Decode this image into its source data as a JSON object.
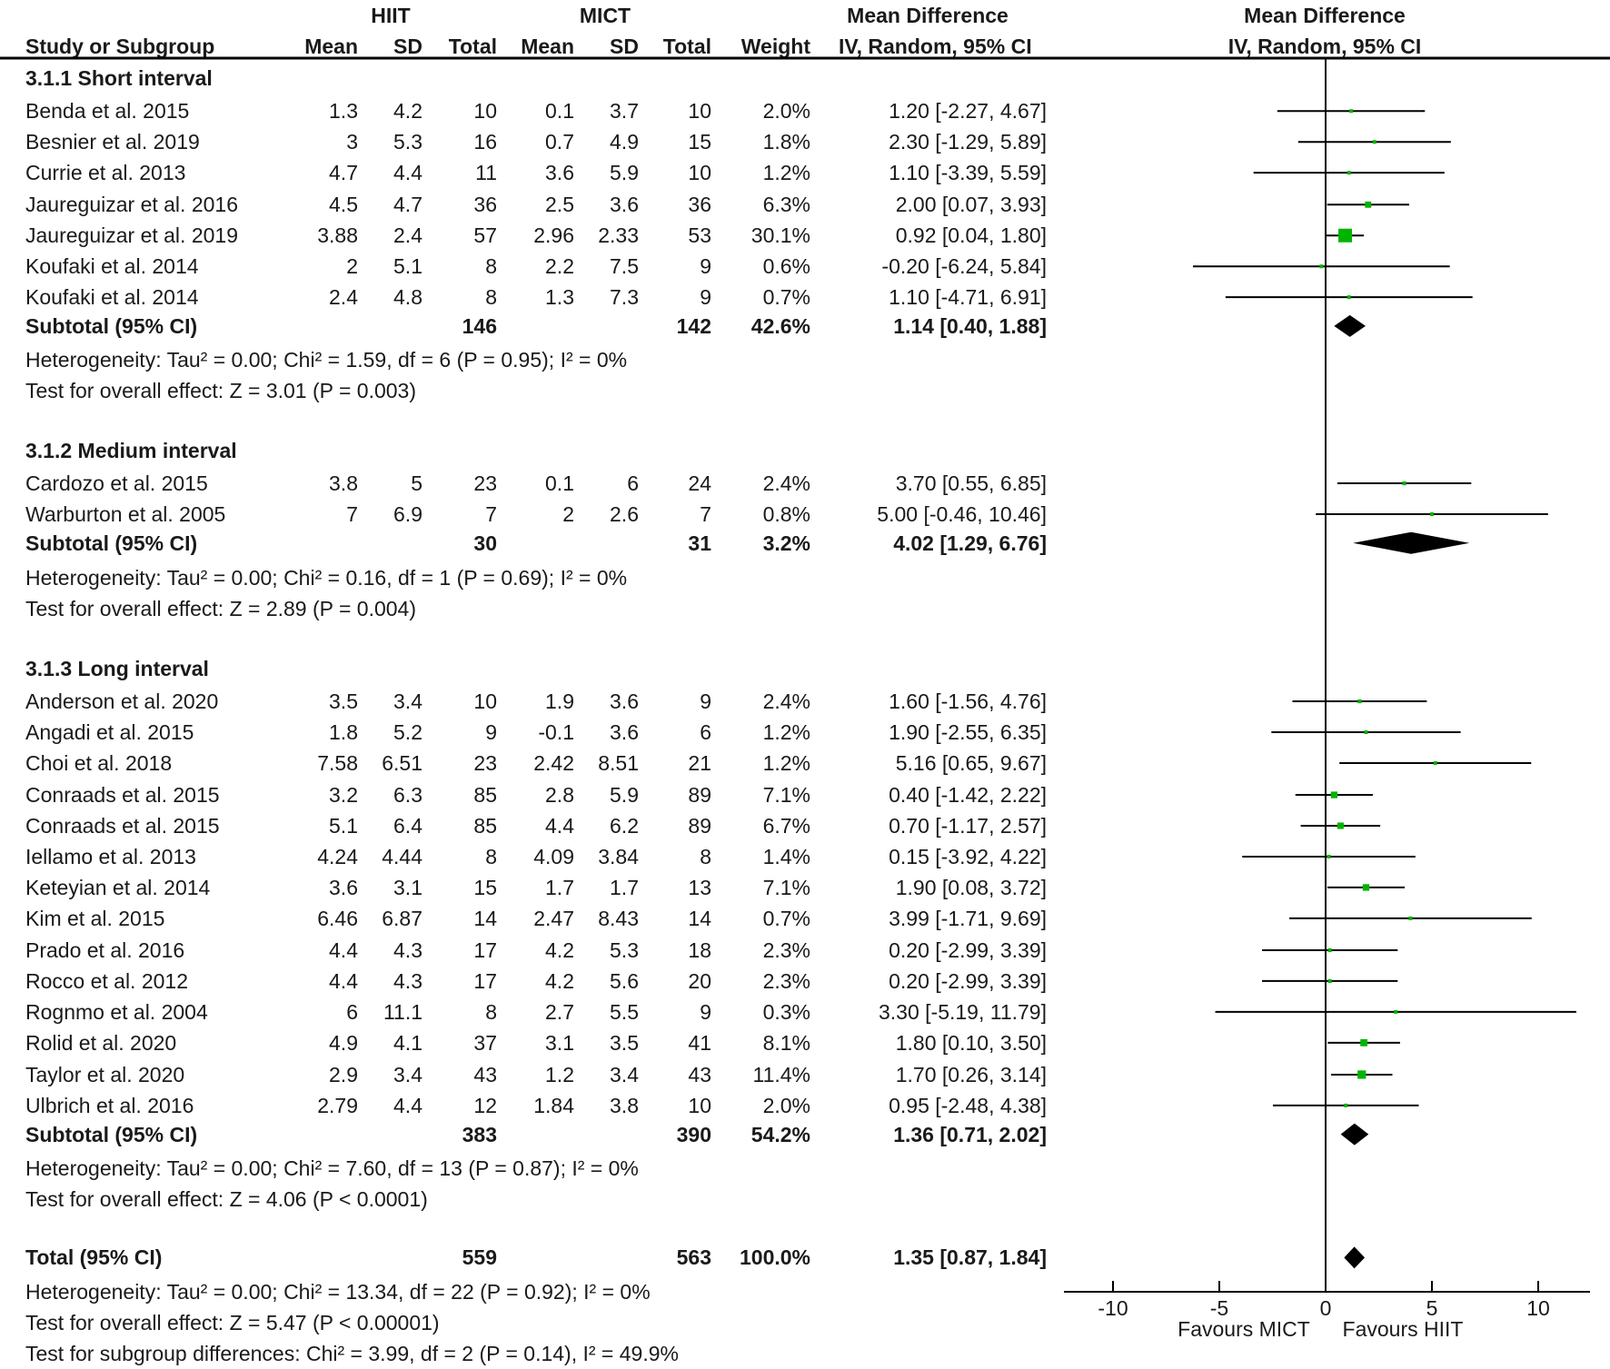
{
  "headers": {
    "group1": "HIIT",
    "group2": "MICT",
    "effect_top": "Mean Difference",
    "plot_top": "Mean Difference",
    "study": "Study or Subgroup",
    "mean1": "Mean",
    "sd1": "SD",
    "total1": "Total",
    "mean2": "Mean",
    "sd2": "SD",
    "total2": "Total",
    "weight": "Weight",
    "effect": "IV, Random, 95% CI",
    "plot": "IV, Random, 95% CI"
  },
  "chart_data": {
    "type": "forest",
    "xlim": [
      -12.5,
      12.5
    ],
    "xticks": [
      "-10",
      "-5",
      "0",
      "5",
      "10"
    ],
    "xtick_values": [
      -10,
      -5,
      0,
      5,
      10
    ],
    "favours_left": "Favours MICT",
    "favours_right": "Favours HIIT",
    "colors": {
      "square": "#00b400",
      "diamond": "#000000",
      "line": "#000000"
    },
    "rows": [
      {
        "type": "group",
        "label": "3.1.1 Short interval"
      },
      {
        "type": "study",
        "name": "Benda et al. 2015",
        "m1": "1.3",
        "sd1": "4.2",
        "n1": "10",
        "m2": "0.1",
        "sd2": "3.7",
        "n2": "10",
        "w": "2.0%",
        "ci": "1.20 [-2.27, 4.67]",
        "est": 1.2,
        "lo": -2.27,
        "hi": 4.67,
        "wv": 2.0
      },
      {
        "type": "study",
        "name": "Besnier et al. 2019",
        "m1": "3",
        "sd1": "5.3",
        "n1": "16",
        "m2": "0.7",
        "sd2": "4.9",
        "n2": "15",
        "w": "1.8%",
        "ci": "2.30 [-1.29, 5.89]",
        "est": 2.3,
        "lo": -1.29,
        "hi": 5.89,
        "wv": 1.8
      },
      {
        "type": "study",
        "name": "Currie et al. 2013",
        "m1": "4.7",
        "sd1": "4.4",
        "n1": "11",
        "m2": "3.6",
        "sd2": "5.9",
        "n2": "10",
        "w": "1.2%",
        "ci": "1.10 [-3.39, 5.59]",
        "est": 1.1,
        "lo": -3.39,
        "hi": 5.59,
        "wv": 1.2
      },
      {
        "type": "study",
        "name": "Jaureguizar et al. 2016",
        "m1": "4.5",
        "sd1": "4.7",
        "n1": "36",
        "m2": "2.5",
        "sd2": "3.6",
        "n2": "36",
        "w": "6.3%",
        "ci": "2.00 [0.07, 3.93]",
        "est": 2.0,
        "lo": 0.07,
        "hi": 3.93,
        "wv": 6.3
      },
      {
        "type": "study",
        "name": "Jaureguizar et al. 2019",
        "m1": "3.88",
        "sd1": "2.4",
        "n1": "57",
        "m2": "2.96",
        "sd2": "2.33",
        "n2": "53",
        "w": "30.1%",
        "ci": "0.92 [0.04, 1.80]",
        "est": 0.92,
        "lo": 0.04,
        "hi": 1.8,
        "wv": 30.1
      },
      {
        "type": "study",
        "name": "Koufaki et al. 2014",
        "m1": "2",
        "sd1": "5.1",
        "n1": "8",
        "m2": "2.2",
        "sd2": "7.5",
        "n2": "9",
        "w": "0.6%",
        "ci": "-0.20 [-6.24, 5.84]",
        "est": -0.2,
        "lo": -6.24,
        "hi": 5.84,
        "wv": 0.6
      },
      {
        "type": "study",
        "name": "Koufaki et al. 2014",
        "m1": "2.4",
        "sd1": "4.8",
        "n1": "8",
        "m2": "1.3",
        "sd2": "7.3",
        "n2": "9",
        "w": "0.7%",
        "ci": "1.10 [-4.71, 6.91]",
        "est": 1.1,
        "lo": -4.71,
        "hi": 6.91,
        "wv": 0.7
      },
      {
        "type": "subtotal",
        "name": "Subtotal (95% CI)",
        "n1": "146",
        "n2": "142",
        "w": "42.6%",
        "ci": "1.14 [0.40, 1.88]",
        "est": 1.14,
        "lo": 0.4,
        "hi": 1.88
      },
      {
        "type": "note",
        "label": "Heterogeneity: Tau² = 0.00; Chi² = 1.59, df = 6 (P = 0.95); I² = 0%"
      },
      {
        "type": "note",
        "label": "Test for overall effect: Z = 3.01 (P = 0.003)"
      },
      {
        "type": "group",
        "label": "3.1.2 Medium interval"
      },
      {
        "type": "study",
        "name": "Cardozo et al. 2015",
        "m1": "3.8",
        "sd1": "5",
        "n1": "23",
        "m2": "0.1",
        "sd2": "6",
        "n2": "24",
        "w": "2.4%",
        "ci": "3.70 [0.55, 6.85]",
        "est": 3.7,
        "lo": 0.55,
        "hi": 6.85,
        "wv": 2.4
      },
      {
        "type": "study",
        "name": "Warburton et al. 2005",
        "m1": "7",
        "sd1": "6.9",
        "n1": "7",
        "m2": "2",
        "sd2": "2.6",
        "n2": "7",
        "w": "0.8%",
        "ci": "5.00 [-0.46, 10.46]",
        "est": 5.0,
        "lo": -0.46,
        "hi": 10.46,
        "wv": 0.8
      },
      {
        "type": "subtotal",
        "name": "Subtotal (95% CI)",
        "n1": "30",
        "n2": "31",
        "w": "3.2%",
        "ci": "4.02 [1.29, 6.76]",
        "est": 4.02,
        "lo": 1.29,
        "hi": 6.76
      },
      {
        "type": "note",
        "label": "Heterogeneity: Tau² = 0.00; Chi² = 0.16, df = 1 (P = 0.69); I² = 0%"
      },
      {
        "type": "note",
        "label": "Test for overall effect: Z = 2.89 (P = 0.004)"
      },
      {
        "type": "group",
        "label": "3.1.3 Long interval"
      },
      {
        "type": "study",
        "name": "Anderson et al. 2020",
        "m1": "3.5",
        "sd1": "3.4",
        "n1": "10",
        "m2": "1.9",
        "sd2": "3.6",
        "n2": "9",
        "w": "2.4%",
        "ci": "1.60 [-1.56, 4.76]",
        "est": 1.6,
        "lo": -1.56,
        "hi": 4.76,
        "wv": 2.4
      },
      {
        "type": "study",
        "name": "Angadi et al. 2015",
        "m1": "1.8",
        "sd1": "5.2",
        "n1": "9",
        "m2": "-0.1",
        "sd2": "3.6",
        "n2": "6",
        "w": "1.2%",
        "ci": "1.90 [-2.55, 6.35]",
        "est": 1.9,
        "lo": -2.55,
        "hi": 6.35,
        "wv": 1.2
      },
      {
        "type": "study",
        "name": "Choi et al. 2018",
        "m1": "7.58",
        "sd1": "6.51",
        "n1": "23",
        "m2": "2.42",
        "sd2": "8.51",
        "n2": "21",
        "w": "1.2%",
        "ci": "5.16 [0.65, 9.67]",
        "est": 5.16,
        "lo": 0.65,
        "hi": 9.67,
        "wv": 1.2
      },
      {
        "type": "study",
        "name": "Conraads et al. 2015",
        "m1": "3.2",
        "sd1": "6.3",
        "n1": "85",
        "m2": "2.8",
        "sd2": "5.9",
        "n2": "89",
        "w": "7.1%",
        "ci": "0.40 [-1.42, 2.22]",
        "est": 0.4,
        "lo": -1.42,
        "hi": 2.22,
        "wv": 7.1
      },
      {
        "type": "study",
        "name": "Conraads et al. 2015",
        "m1": "5.1",
        "sd1": "6.4",
        "n1": "85",
        "m2": "4.4",
        "sd2": "6.2",
        "n2": "89",
        "w": "6.7%",
        "ci": "0.70 [-1.17, 2.57]",
        "est": 0.7,
        "lo": -1.17,
        "hi": 2.57,
        "wv": 6.7
      },
      {
        "type": "study",
        "name": "Iellamo et al. 2013",
        "m1": "4.24",
        "sd1": "4.44",
        "n1": "8",
        "m2": "4.09",
        "sd2": "3.84",
        "n2": "8",
        "w": "1.4%",
        "ci": "0.15 [-3.92, 4.22]",
        "est": 0.15,
        "lo": -3.92,
        "hi": 4.22,
        "wv": 1.4
      },
      {
        "type": "study",
        "name": "Keteyian et al. 2014",
        "m1": "3.6",
        "sd1": "3.1",
        "n1": "15",
        "m2": "1.7",
        "sd2": "1.7",
        "n2": "13",
        "w": "7.1%",
        "ci": "1.90 [0.08, 3.72]",
        "est": 1.9,
        "lo": 0.08,
        "hi": 3.72,
        "wv": 7.1
      },
      {
        "type": "study",
        "name": "Kim et al. 2015",
        "m1": "6.46",
        "sd1": "6.87",
        "n1": "14",
        "m2": "2.47",
        "sd2": "8.43",
        "n2": "14",
        "w": "0.7%",
        "ci": "3.99 [-1.71, 9.69]",
        "est": 3.99,
        "lo": -1.71,
        "hi": 9.69,
        "wv": 0.7
      },
      {
        "type": "study",
        "name": "Prado et al. 2016",
        "m1": "4.4",
        "sd1": "4.3",
        "n1": "17",
        "m2": "4.2",
        "sd2": "5.3",
        "n2": "18",
        "w": "2.3%",
        "ci": "0.20 [-2.99, 3.39]",
        "est": 0.2,
        "lo": -2.99,
        "hi": 3.39,
        "wv": 2.3
      },
      {
        "type": "study",
        "name": "Rocco et al. 2012",
        "m1": "4.4",
        "sd1": "4.3",
        "n1": "17",
        "m2": "4.2",
        "sd2": "5.6",
        "n2": "20",
        "w": "2.3%",
        "ci": "0.20 [-2.99, 3.39]",
        "est": 0.2,
        "lo": -2.99,
        "hi": 3.39,
        "wv": 2.3
      },
      {
        "type": "study",
        "name": "Rognmo et al. 2004",
        "m1": "6",
        "sd1": "11.1",
        "n1": "8",
        "m2": "2.7",
        "sd2": "5.5",
        "n2": "9",
        "w": "0.3%",
        "ci": "3.30 [-5.19, 11.79]",
        "est": 3.3,
        "lo": -5.19,
        "hi": 11.79,
        "wv": 0.3
      },
      {
        "type": "study",
        "name": "Rolid et al. 2020",
        "m1": "4.9",
        "sd1": "4.1",
        "n1": "37",
        "m2": "3.1",
        "sd2": "3.5",
        "n2": "41",
        "w": "8.1%",
        "ci": "1.80 [0.10, 3.50]",
        "est": 1.8,
        "lo": 0.1,
        "hi": 3.5,
        "wv": 8.1
      },
      {
        "type": "study",
        "name": "Taylor et al. 2020",
        "m1": "2.9",
        "sd1": "3.4",
        "n1": "43",
        "m2": "1.2",
        "sd2": "3.4",
        "n2": "43",
        "w": "11.4%",
        "ci": "1.70 [0.26, 3.14]",
        "est": 1.7,
        "lo": 0.26,
        "hi": 3.14,
        "wv": 11.4
      },
      {
        "type": "study",
        "name": "Ulbrich et al. 2016",
        "m1": "2.79",
        "sd1": "4.4",
        "n1": "12",
        "m2": "1.84",
        "sd2": "3.8",
        "n2": "10",
        "w": "2.0%",
        "ci": "0.95 [-2.48, 4.38]",
        "est": 0.95,
        "lo": -2.48,
        "hi": 4.38,
        "wv": 2.0
      },
      {
        "type": "subtotal",
        "name": "Subtotal (95% CI)",
        "n1": "383",
        "n2": "390",
        "w": "54.2%",
        "ci": "1.36 [0.71, 2.02]",
        "est": 1.36,
        "lo": 0.71,
        "hi": 2.02
      },
      {
        "type": "note",
        "label": "Heterogeneity: Tau² = 0.00; Chi² = 7.60, df = 13 (P = 0.87); I² = 0%"
      },
      {
        "type": "note",
        "label": "Test for overall effect: Z = 4.06 (P < 0.0001)"
      },
      {
        "type": "subtotal",
        "name": "Total (95% CI)",
        "n1": "559",
        "n2": "563",
        "w": "100.0%",
        "ci": "1.35 [0.87, 1.84]",
        "est": 1.35,
        "lo": 0.87,
        "hi": 1.84
      },
      {
        "type": "note",
        "label": "Heterogeneity: Tau² = 0.00; Chi² = 13.34, df = 22 (P = 0.92); I² = 0%"
      },
      {
        "type": "note",
        "label": "Test for overall effect: Z = 5.47 (P < 0.00001)"
      },
      {
        "type": "note",
        "label": "Test for subgroup differences: Chi² = 3.99, df = 2 (P = 0.14), I² = 49.9%"
      }
    ]
  }
}
